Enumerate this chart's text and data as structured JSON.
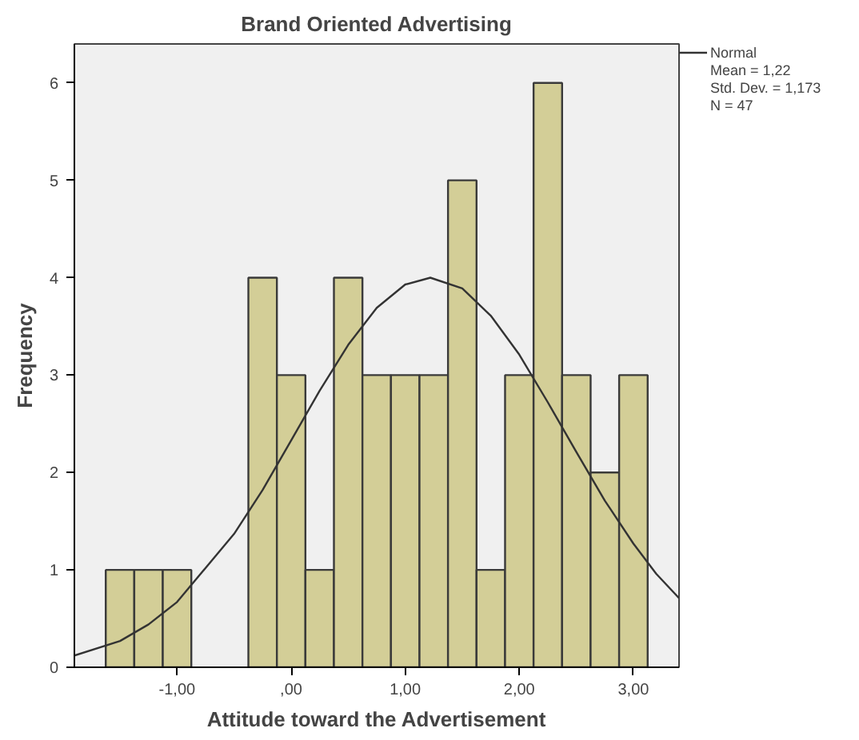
{
  "chart_data": {
    "type": "histogram",
    "title": "Brand Oriented Advertising",
    "xlabel": "Attitude toward the Advertisement",
    "ylabel": "Frequency",
    "bins": [
      -1.625,
      -1.375,
      -1.125,
      -0.875,
      -0.625,
      -0.375,
      -0.125,
      0.125,
      0.375,
      0.625,
      0.875,
      1.125,
      1.375,
      1.625,
      1.875,
      2.125,
      2.375,
      2.625,
      2.875,
      3.125
    ],
    "values": [
      1,
      1,
      1,
      0,
      0,
      4,
      3,
      1,
      4,
      3,
      3,
      3,
      5,
      1,
      3,
      6,
      3,
      2,
      3
    ],
    "color": "#d3ce97",
    "series": [
      {
        "name": "Normal",
        "type": "line",
        "color": "#333333",
        "x": [
          -1.9,
          -1.5,
          -1.25,
          -1.0,
          -0.5,
          -0.25,
          0,
          0.25,
          0.5,
          0.75,
          1.0,
          1.22,
          1.5,
          1.75,
          2.0,
          2.25,
          2.5,
          2.75,
          3.0,
          3.2,
          3.4
        ],
        "values": [
          0.12,
          0.27,
          0.44,
          0.67,
          1.37,
          1.82,
          2.33,
          2.84,
          3.31,
          3.69,
          3.93,
          4.0,
          3.89,
          3.61,
          3.21,
          2.72,
          2.21,
          1.71,
          1.27,
          0.96,
          0.71
        ]
      }
    ],
    "xlim": [
      -1.9,
      3.4
    ],
    "ylim": [
      0,
      6.4
    ],
    "xticks": [
      {
        "value": -1,
        "label": "-1,00"
      },
      {
        "value": 0,
        "label": ",00"
      },
      {
        "value": 1,
        "label": "1,00"
      },
      {
        "value": 2,
        "label": "2,00"
      },
      {
        "value": 3,
        "label": "3,00"
      }
    ],
    "yticks": [
      0,
      1,
      2,
      3,
      4,
      5,
      6
    ],
    "annotations": [
      "Mean = 1,22",
      "Std. Dev. = 1,173",
      "N = 47"
    ],
    "grid": false,
    "legend": "top right"
  }
}
